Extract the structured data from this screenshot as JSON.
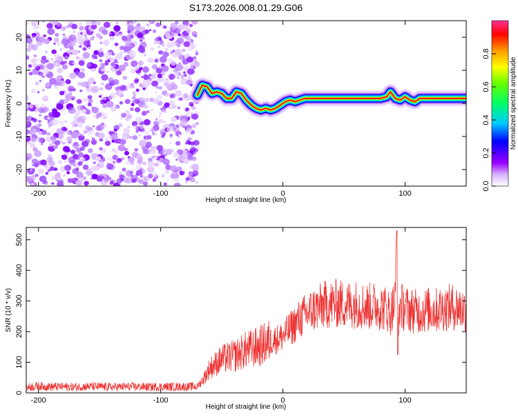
{
  "title": "S173.2026.008.01.29.G06",
  "chart_data": [
    {
      "type": "heatmap",
      "title": "S173.2026.008.01.29.G06",
      "xlabel": "Height of straight line (km)",
      "ylabel": "Frequency (Hz)",
      "xlim": [
        -210,
        150
      ],
      "ylim": [
        -25,
        25
      ],
      "xticks": [
        -200,
        -100,
        0,
        100
      ],
      "yticks": [
        -20,
        -10,
        0,
        10,
        20
      ],
      "colorbar": {
        "label": "Normalized spectral amplitude",
        "range": [
          0,
          1
        ],
        "ticks": [
          0.0,
          0.2,
          0.4,
          0.6,
          0.8
        ]
      },
      "noise_region_x": [
        -210,
        -70
      ],
      "signal_ridge": {
        "x": [
          -70,
          -66,
          -62,
          -58,
          -54,
          -50,
          -46,
          -42,
          -38,
          -34,
          -30,
          -26,
          -22,
          -18,
          -14,
          -10,
          -6,
          -2,
          2,
          6,
          10,
          14,
          18,
          22,
          30,
          40,
          50,
          60,
          70,
          80,
          85,
          88,
          92,
          96,
          100,
          104,
          108,
          112,
          120,
          130,
          140,
          150
        ],
        "freq_hz": [
          2.5,
          5.5,
          5.0,
          3.0,
          3.5,
          3.0,
          1.5,
          1.5,
          3.5,
          3.0,
          1.0,
          -0.5,
          -1.5,
          -2.0,
          -1.5,
          -2.0,
          -1.5,
          -0.5,
          0.5,
          1.0,
          0.5,
          1.0,
          1.5,
          1.5,
          1.5,
          1.5,
          1.5,
          1.5,
          1.5,
          1.5,
          2.0,
          3.5,
          1.5,
          1.0,
          2.0,
          1.0,
          0.5,
          1.5,
          1.5,
          1.5,
          1.5,
          1.5
        ]
      }
    },
    {
      "type": "line",
      "xlabel": "Height of straight line (km)",
      "ylabel": "SNR (10 * v/v)",
      "xlim": [
        -210,
        150
      ],
      "ylim": [
        0,
        540
      ],
      "xticks": [
        -200,
        -100,
        0,
        100
      ],
      "yticks": [
        0,
        100,
        200,
        300,
        400,
        500
      ],
      "series": [
        {
          "name": "SNR",
          "color": "#ee3333",
          "x": [
            -210,
            -200,
            -190,
            -180,
            -170,
            -160,
            -150,
            -140,
            -130,
            -120,
            -110,
            -100,
            -90,
            -80,
            -70,
            -65,
            -60,
            -55,
            -50,
            -45,
            -40,
            -35,
            -30,
            -25,
            -20,
            -15,
            -10,
            -5,
            0,
            5,
            10,
            15,
            20,
            25,
            30,
            35,
            40,
            45,
            50,
            55,
            60,
            65,
            70,
            75,
            80,
            85,
            88,
            90,
            92,
            93,
            94,
            95,
            96,
            98,
            100,
            105,
            110,
            115,
            120,
            125,
            130,
            135,
            140,
            145,
            150
          ],
          "values": [
            18,
            22,
            20,
            20,
            19,
            21,
            20,
            19,
            20,
            20,
            19,
            20,
            20,
            20,
            21,
            45,
            80,
            95,
            110,
            115,
            120,
            130,
            140,
            145,
            150,
            160,
            170,
            175,
            185,
            205,
            225,
            245,
            260,
            272,
            280,
            288,
            290,
            292,
            290,
            288,
            290,
            285,
            282,
            285,
            280,
            275,
            260,
            280,
            300,
            530,
            140,
            270,
            285,
            280,
            275,
            270,
            265,
            268,
            272,
            270,
            275,
            278,
            280,
            276,
            270
          ]
        }
      ]
    }
  ]
}
